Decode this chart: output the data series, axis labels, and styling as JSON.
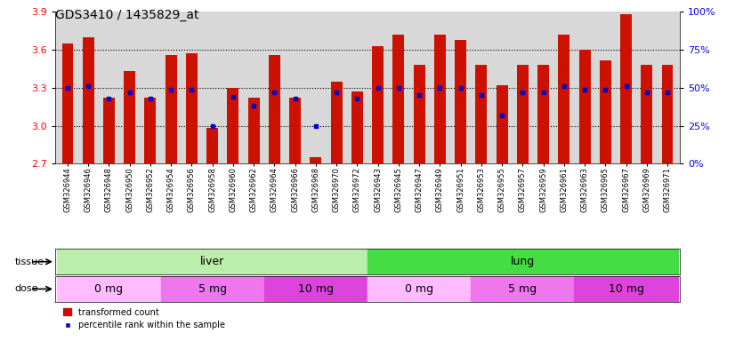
{
  "title": "GDS3410 / 1435829_at",
  "samples": [
    "GSM326944",
    "GSM326946",
    "GSM326948",
    "GSM326950",
    "GSM326952",
    "GSM326954",
    "GSM326956",
    "GSM326958",
    "GSM326960",
    "GSM326962",
    "GSM326964",
    "GSM326966",
    "GSM326968",
    "GSM326970",
    "GSM326972",
    "GSM326943",
    "GSM326945",
    "GSM326947",
    "GSM326949",
    "GSM326951",
    "GSM326953",
    "GSM326955",
    "GSM326957",
    "GSM326959",
    "GSM326961",
    "GSM326963",
    "GSM326965",
    "GSM326967",
    "GSM326969",
    "GSM326971"
  ],
  "red_values": [
    3.65,
    3.7,
    3.22,
    3.43,
    3.22,
    3.56,
    3.57,
    2.98,
    3.3,
    3.22,
    3.56,
    3.22,
    2.75,
    3.35,
    3.27,
    3.63,
    3.72,
    3.48,
    3.72,
    3.68,
    3.48,
    3.32,
    3.48,
    3.48,
    3.72,
    3.6,
    3.52,
    3.88,
    3.48,
    3.48
  ],
  "blue_percentile": [
    50,
    51,
    43,
    47,
    43,
    49,
    49,
    25,
    44,
    38,
    47,
    43,
    25,
    47,
    43,
    50,
    50,
    45,
    50,
    50,
    45,
    32,
    47,
    47,
    51,
    49,
    49,
    51,
    47,
    47
  ],
  "ylim_left": [
    2.7,
    3.9
  ],
  "ylim_right": [
    0,
    100
  ],
  "yticks_left": [
    2.7,
    3.0,
    3.3,
    3.6,
    3.9
  ],
  "yticks_right": [
    0,
    25,
    50,
    75,
    100
  ],
  "bar_color": "#cc1100",
  "dot_color": "#0000cc",
  "plot_bg_color": "#d8d8d8",
  "xtick_bg_color": "#c8c8c8",
  "tissue_groups": [
    {
      "label": "liver",
      "start": 0,
      "end": 15,
      "color": "#bbeeaa"
    },
    {
      "label": "lung",
      "start": 15,
      "end": 30,
      "color": "#44dd44"
    }
  ],
  "dose_groups": [
    {
      "label": "0 mg",
      "start": 0,
      "end": 5,
      "color": "#ffbbff"
    },
    {
      "label": "5 mg",
      "start": 5,
      "end": 10,
      "color": "#ee77ee"
    },
    {
      "label": "10 mg",
      "start": 10,
      "end": 15,
      "color": "#dd44dd"
    },
    {
      "label": "0 mg",
      "start": 15,
      "end": 20,
      "color": "#ffbbff"
    },
    {
      "label": "5 mg",
      "start": 20,
      "end": 25,
      "color": "#ee77ee"
    },
    {
      "label": "10 mg",
      "start": 25,
      "end": 30,
      "color": "#dd44dd"
    }
  ],
  "tissue_label": "tissue",
  "dose_label": "dose",
  "legend_red": "transformed count",
  "legend_blue": "percentile rank within the sample",
  "bar_width": 0.55,
  "title_fontsize": 10,
  "tick_fontsize": 6,
  "label_fontsize": 8,
  "group_label_fontsize": 9
}
